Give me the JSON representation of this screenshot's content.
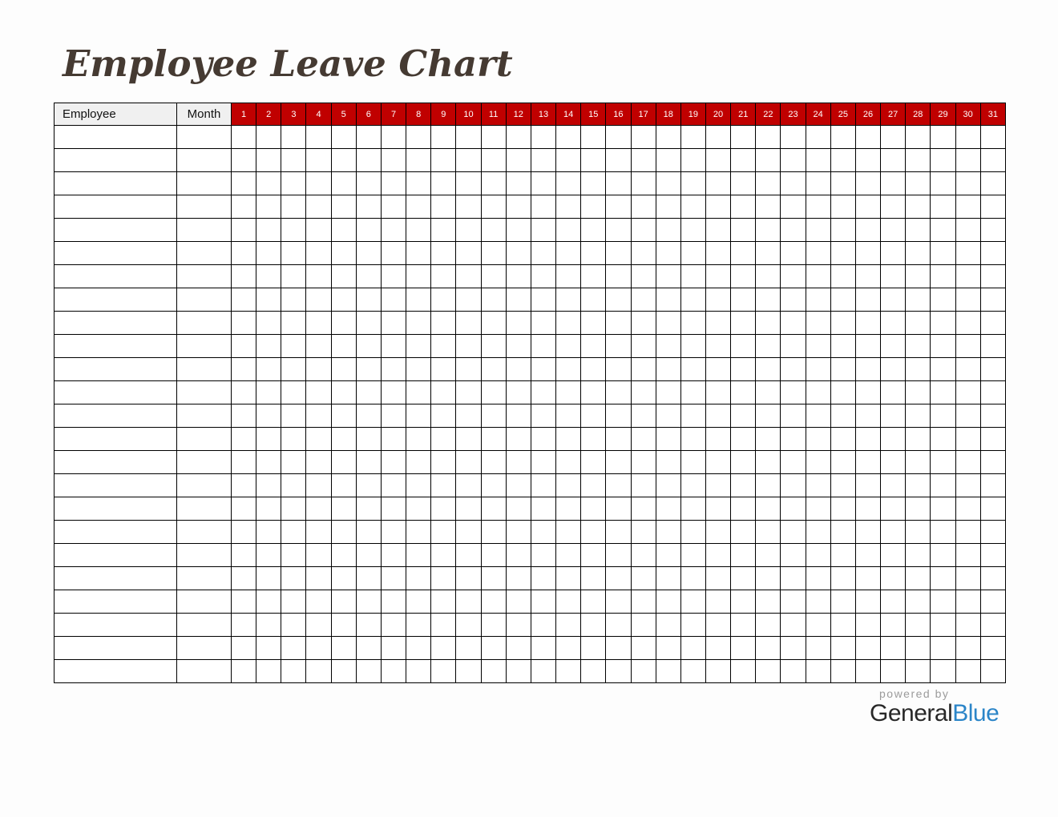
{
  "page": {
    "title": "Employee Leave Chart"
  },
  "table": {
    "employee_header": "Employee",
    "month_header": "Month",
    "days": [
      "1",
      "2",
      "3",
      "4",
      "5",
      "6",
      "7",
      "8",
      "9",
      "10",
      "11",
      "12",
      "13",
      "14",
      "15",
      "16",
      "17",
      "18",
      "19",
      "20",
      "21",
      "22",
      "23",
      "24",
      "25",
      "26",
      "27",
      "28",
      "29",
      "30",
      "31"
    ],
    "num_rows": 24
  },
  "footer": {
    "powered_by": "powered by",
    "brand_general": "General",
    "brand_blue": "Blue"
  },
  "colors": {
    "day_header_bg": "#c00000",
    "day_header_text": "#ffffff",
    "label_header_bg": "#f0f0f0",
    "grid_border": "#000000",
    "title_color": "#453a32",
    "powered_by_color": "#9b9b9b",
    "brand_general_color": "#282828",
    "brand_blue_color": "#2b85c8"
  }
}
